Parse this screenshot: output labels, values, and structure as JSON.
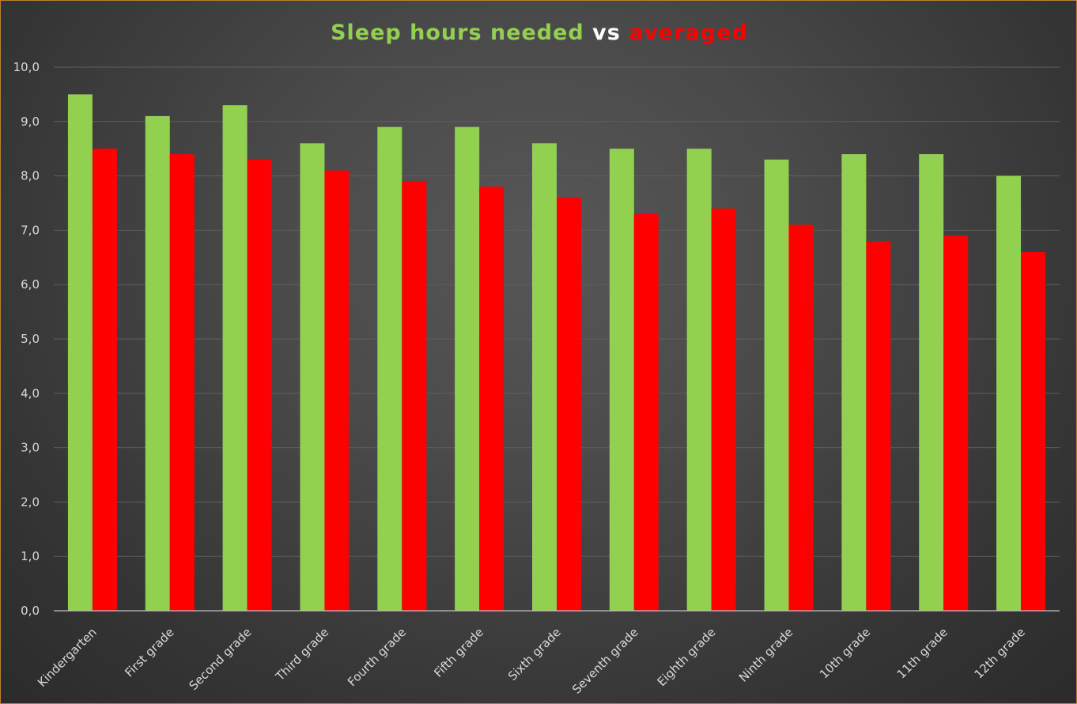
{
  "chart_data": {
    "type": "bar",
    "title_parts": [
      {
        "text": "Sleep hours needed ",
        "color": "#92d050"
      },
      {
        "text": "vs ",
        "color": "#ffffff"
      },
      {
        "text": "averaged",
        "color": "#ff0000"
      }
    ],
    "categories": [
      "Kindergarten",
      "First grade",
      "Second grade",
      "Third grade",
      "Fourth grade",
      "Fifth grade",
      "Sixth grade",
      "Seventh grade",
      "Eighth grade",
      "Ninth grade",
      "10th grade",
      "11th grade",
      "12th grade"
    ],
    "series": [
      {
        "color": "#92d050",
        "values": [
          9.5,
          9.1,
          9.3,
          8.6,
          8.9,
          8.9,
          8.6,
          8.5,
          8.5,
          8.3,
          8.4,
          8.4,
          8.0
        ]
      },
      {
        "color": "#ff0000",
        "values": [
          8.5,
          8.4,
          8.3,
          8.1,
          7.9,
          7.8,
          7.6,
          7.3,
          7.4,
          7.1,
          6.8,
          6.9,
          6.6
        ]
      }
    ],
    "yticks": [
      "0,0",
      "1,0",
      "2,0",
      "3,0",
      "4,0",
      "5,0",
      "6,0",
      "7,0",
      "8,0",
      "9,0",
      "10,0"
    ],
    "ylim": [
      0,
      10
    ],
    "grid": true,
    "xlabel": "",
    "ylabel": ""
  }
}
